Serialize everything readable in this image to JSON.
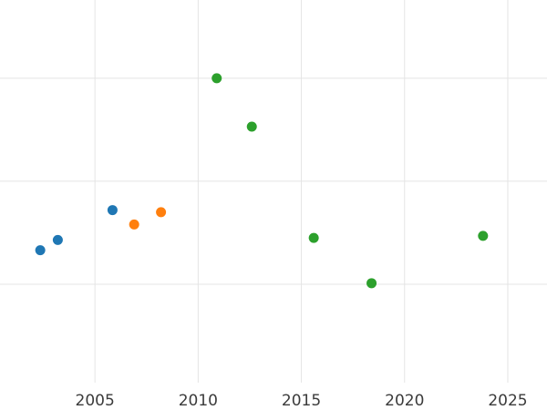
{
  "chart_data": {
    "type": "scatter",
    "title": "",
    "xlabel": "",
    "ylabel": "",
    "grid": true,
    "legend": "none",
    "background": "#ffffff",
    "grid_color": "#e4e4e4",
    "tick_color": "#3b3b3b",
    "xlim": [
      2000.4,
      2026.9
    ],
    "ylim": [
      0.044,
      3.76
    ],
    "x_ticks": [
      {
        "value": 2005,
        "label": "2005"
      },
      {
        "value": 2010,
        "label": "2010"
      },
      {
        "value": 2015,
        "label": "2015"
      },
      {
        "value": 2020,
        "label": "2020"
      },
      {
        "value": 2025,
        "label": "2025"
      }
    ],
    "y_gridline_values": [
      1,
      2,
      3
    ],
    "marker": {
      "shape": "circle",
      "radius_px": 5.5
    },
    "series": [
      {
        "name": "series-blue",
        "color": "#1f77b4",
        "points": [
          {
            "x": 2002.35,
            "y": 1.33
          },
          {
            "x": 2003.2,
            "y": 1.43
          },
          {
            "x": 2005.85,
            "y": 1.72
          }
        ]
      },
      {
        "name": "series-orange",
        "color": "#ff7f0e",
        "points": [
          {
            "x": 2006.9,
            "y": 1.58
          },
          {
            "x": 2008.2,
            "y": 1.7
          }
        ]
      },
      {
        "name": "series-green",
        "color": "#2ca02c",
        "points": [
          {
            "x": 2010.9,
            "y": 3.0
          },
          {
            "x": 2012.6,
            "y": 2.53
          },
          {
            "x": 2015.6,
            "y": 1.45
          },
          {
            "x": 2018.4,
            "y": 1.01
          },
          {
            "x": 2023.8,
            "y": 1.47
          }
        ]
      }
    ]
  }
}
